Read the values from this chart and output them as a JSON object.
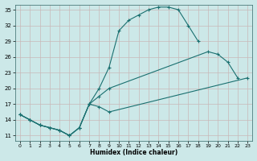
{
  "xlabel": "Humidex (Indice chaleur)",
  "bg_color": "#cce8e8",
  "grid_color": "#aacccc",
  "line_color": "#1a7070",
  "xlim": [
    -0.5,
    23.5
  ],
  "ylim": [
    10,
    36
  ],
  "yticks": [
    11,
    14,
    17,
    20,
    23,
    26,
    29,
    32,
    35
  ],
  "xticks": [
    0,
    1,
    2,
    3,
    4,
    5,
    6,
    7,
    8,
    9,
    10,
    11,
    12,
    13,
    14,
    15,
    16,
    17,
    18,
    19,
    20,
    21,
    22,
    23
  ],
  "series1_x": [
    0,
    1,
    2,
    3,
    4,
    5,
    6,
    7,
    8,
    9,
    10,
    11,
    12,
    13,
    14,
    15,
    16,
    17,
    18
  ],
  "series1_y": [
    15,
    14,
    13,
    12.5,
    12,
    11,
    12.5,
    17,
    20,
    24,
    31,
    33,
    34,
    35,
    35.5,
    35.5,
    35,
    32,
    29
  ],
  "series2_x": [
    0,
    1,
    2,
    3,
    4,
    5,
    6,
    7,
    8,
    9,
    19,
    20,
    21,
    22
  ],
  "series2_y": [
    15,
    14,
    13,
    12.5,
    12,
    11,
    12.5,
    17,
    18.5,
    20,
    27,
    26.5,
    25,
    22
  ],
  "series3_x": [
    0,
    1,
    2,
    3,
    4,
    5,
    6,
    7,
    8,
    9,
    23
  ],
  "series3_y": [
    15,
    14,
    13,
    12.5,
    12,
    11,
    12.5,
    17,
    16.5,
    15.5,
    22
  ]
}
